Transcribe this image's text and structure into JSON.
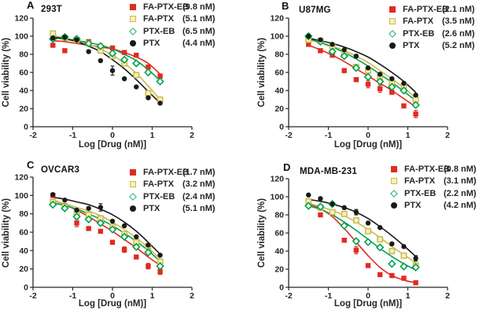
{
  "figure": {
    "background": "#ffffff"
  },
  "axes": {
    "xlabel": "Log [Drug (nM)]",
    "ylabel": "Cell viability (%)",
    "xticks": [
      -2,
      -1,
      0,
      1,
      2
    ],
    "yticks": [
      0,
      20,
      40,
      60,
      80,
      100,
      120
    ],
    "xlim": [
      -2,
      2
    ],
    "ylim": [
      0,
      120
    ],
    "grid": false,
    "axis_color": "#262626"
  },
  "chart_data": [
    {
      "type": "scatter",
      "panel_label": "A",
      "title": "293T",
      "x": [
        -1.5,
        -1.2,
        -0.9,
        -0.6,
        -0.3,
        0,
        0.3,
        0.6,
        0.9,
        1.2
      ],
      "series": [
        {
          "name": "FA-PTX-EB",
          "ic50_label": "(9.8 nM)",
          "marker": "square-filled",
          "color": "#e02b20",
          "fill": "#e02b20",
          "values": [
            90,
            84,
            96,
            94,
            89,
            87,
            82,
            79,
            66,
            56
          ],
          "err": [
            0,
            0,
            0,
            0,
            0,
            0,
            0,
            0,
            0,
            0
          ],
          "fit": [
            95,
            94,
            92,
            90,
            88,
            86,
            82,
            77,
            70,
            58
          ]
        },
        {
          "name": "FA-PTX",
          "ic50_label": "(5.1 nM)",
          "marker": "square-open",
          "color": "#c9bb4d",
          "fill": "#f7f0bd",
          "values": [
            103,
            98,
            96,
            92,
            84,
            78,
            70,
            57,
            37,
            30
          ],
          "err": [
            0,
            0,
            0,
            0,
            0,
            0,
            0,
            0,
            0,
            0
          ],
          "fit": [
            101,
            98,
            95,
            91,
            86,
            79,
            70,
            59,
            45,
            30
          ]
        },
        {
          "name": "PTX-EB",
          "ic50_label": "(6.5 nM)",
          "marker": "diamond-open",
          "color": "#00a14e",
          "fill": "#ffffff",
          "values": [
            97,
            99,
            97,
            92,
            89,
            81,
            74,
            70,
            60,
            50
          ],
          "err": [
            0,
            0,
            0,
            0,
            0,
            0,
            0,
            0,
            0,
            0
          ],
          "fit": [
            98,
            97,
            95,
            93,
            90,
            86,
            80,
            73,
            63,
            51
          ]
        },
        {
          "name": "PTX",
          "ic50_label": "(4.4 nM)",
          "marker": "circle-filled",
          "color": "#1a1a1a",
          "fill": "#1a1a1a",
          "values": [
            98,
            99,
            96,
            83,
            73,
            62,
            53,
            44,
            32,
            26
          ],
          "err": [
            0,
            0,
            0,
            0,
            0,
            5,
            0,
            0,
            0,
            0
          ],
          "fit": [
            99,
            97,
            94,
            89,
            83,
            74,
            64,
            52,
            39,
            26
          ]
        }
      ]
    },
    {
      "type": "scatter",
      "panel_label": "B",
      "title": "U87MG",
      "x": [
        -1.5,
        -1.2,
        -0.9,
        -0.6,
        -0.3,
        0,
        0.3,
        0.6,
        0.9,
        1.2
      ],
      "series": [
        {
          "name": "FA-PTX-EB",
          "ic50_label": "(2.1 nM)",
          "marker": "square-filled",
          "color": "#e02b20",
          "fill": "#e02b20",
          "values": [
            91,
            84,
            79,
            62,
            52,
            47,
            42,
            38,
            23,
            14
          ],
          "err": [
            0,
            0,
            0,
            0,
            0,
            4,
            4,
            0,
            0,
            4
          ],
          "fit": [
            90,
            85,
            79,
            72,
            64,
            56,
            48,
            40,
            31,
            22
          ]
        },
        {
          "name": "FA-PTX",
          "ic50_label": "(3.5 nM)",
          "marker": "square-open",
          "color": "#c9bb4d",
          "fill": "#f7f0bd",
          "values": [
            96,
            95,
            89,
            80,
            66,
            62,
            55,
            48,
            45,
            30
          ],
          "err": [
            0,
            0,
            0,
            0,
            0,
            0,
            0,
            0,
            0,
            0
          ],
          "fit": [
            96,
            93,
            89,
            84,
            78,
            71,
            62,
            53,
            43,
            32
          ]
        },
        {
          "name": "PTX-EB",
          "ic50_label": "(2.6 nM)",
          "marker": "diamond-open",
          "color": "#00a14e",
          "fill": "#ffffff",
          "values": [
            100,
            94,
            83,
            78,
            65,
            55,
            50,
            44,
            40,
            24
          ],
          "err": [
            0,
            0,
            0,
            0,
            0,
            0,
            0,
            0,
            0,
            0
          ],
          "fit": [
            97,
            93,
            88,
            82,
            75,
            67,
            58,
            49,
            39,
            29
          ]
        },
        {
          "name": "PTX",
          "ic50_label": "(5.2 nM)",
          "marker": "circle-filled",
          "color": "#1a1a1a",
          "fill": "#1a1a1a",
          "values": [
            100,
            96,
            91,
            85,
            78,
            65,
            58,
            53,
            48,
            35
          ],
          "err": [
            0,
            0,
            0,
            0,
            0,
            0,
            0,
            0,
            0,
            0
          ],
          "fit": [
            98,
            95,
            92,
            88,
            83,
            77,
            69,
            60,
            50,
            38
          ]
        }
      ]
    },
    {
      "type": "scatter",
      "panel_label": "C",
      "title": "OVCAR3",
      "x": [
        -1.5,
        -1.2,
        -0.9,
        -0.6,
        -0.3,
        0,
        0.3,
        0.6,
        0.9,
        1.2
      ],
      "series": [
        {
          "name": "FA-PTX-EB",
          "ic50_label": "(1.7 nM)",
          "marker": "square-filled",
          "color": "#e02b20",
          "fill": "#e02b20",
          "values": [
            100,
            89,
            70,
            64,
            61,
            49,
            41,
            33,
            23,
            17
          ],
          "err": [
            0,
            0,
            4,
            0,
            0,
            0,
            3,
            0,
            3,
            3
          ],
          "fit": [
            95,
            90,
            84,
            77,
            69,
            61,
            52,
            43,
            33,
            24
          ]
        },
        {
          "name": "FA-PTX",
          "ic50_label": "(3.2 nM)",
          "marker": "square-open",
          "color": "#c9bb4d",
          "fill": "#f7f0bd",
          "values": [
            93,
            88,
            80,
            79,
            75,
            66,
            58,
            49,
            45,
            28
          ],
          "err": [
            3,
            0,
            0,
            0,
            0,
            0,
            0,
            3,
            0,
            0
          ],
          "fit": [
            94,
            91,
            87,
            83,
            78,
            71,
            63,
            54,
            43,
            31
          ]
        },
        {
          "name": "PTX-EB",
          "ic50_label": "(2.4 nM)",
          "marker": "diamond-open",
          "color": "#00a14e",
          "fill": "#ffffff",
          "values": [
            90,
            86,
            77,
            74,
            70,
            63,
            55,
            44,
            38,
            23
          ],
          "err": [
            0,
            0,
            0,
            0,
            0,
            0,
            0,
            0,
            0,
            0
          ],
          "fit": [
            92,
            89,
            85,
            80,
            74,
            67,
            59,
            50,
            40,
            28
          ]
        },
        {
          "name": "PTX",
          "ic50_label": "(5.1 nM)",
          "marker": "circle-filled",
          "color": "#1a1a1a",
          "fill": "#1a1a1a",
          "values": [
            101,
            95,
            84,
            86,
            87,
            72,
            67,
            55,
            46,
            35
          ],
          "err": [
            0,
            0,
            0,
            0,
            4,
            0,
            0,
            0,
            0,
            0
          ],
          "fit": [
            98,
            96,
            93,
            90,
            85,
            79,
            71,
            61,
            49,
            36
          ]
        }
      ]
    },
    {
      "type": "scatter",
      "panel_label": "D",
      "title": "MDA-MB-231",
      "x": [
        -1.5,
        -1.2,
        -0.9,
        -0.6,
        -0.3,
        0,
        0.3,
        0.6,
        0.9,
        1.2
      ],
      "series": [
        {
          "name": "FA-PTX-EB",
          "ic50_label": "(0.8 nM)",
          "marker": "square-filled",
          "color": "#e02b20",
          "fill": "#e02b20",
          "values": [
            93,
            80,
            82,
            52,
            41,
            24,
            14,
            13,
            10,
            5
          ],
          "err": [
            0,
            0,
            0,
            0,
            4,
            0,
            0,
            0,
            0,
            2
          ],
          "fit": [
            92,
            87,
            78,
            65,
            50,
            35,
            22,
            13,
            8,
            5
          ]
        },
        {
          "name": "FA-PTX",
          "ic50_label": "(3.1 nM)",
          "marker": "square-open",
          "color": "#c9bb4d",
          "fill": "#f7f0bd",
          "values": [
            95,
            88,
            83,
            81,
            74,
            62,
            53,
            40,
            35,
            24
          ],
          "err": [
            0,
            0,
            0,
            0,
            0,
            0,
            0,
            0,
            0,
            2
          ],
          "fit": [
            93,
            89,
            85,
            79,
            72,
            64,
            55,
            45,
            36,
            27
          ]
        },
        {
          "name": "PTX-EB",
          "ic50_label": "(2.2 nM)",
          "marker": "diamond-open",
          "color": "#00a14e",
          "fill": "#ffffff",
          "values": [
            90,
            89,
            92,
            68,
            51,
            50,
            44,
            26,
            23,
            22
          ],
          "err": [
            0,
            0,
            0,
            0,
            0,
            0,
            0,
            0,
            0,
            0
          ],
          "fit": [
            90,
            86,
            80,
            72,
            63,
            53,
            43,
            34,
            26,
            19
          ]
        },
        {
          "name": "PTX",
          "ic50_label": "(4.2 nM)",
          "marker": "circle-filled",
          "color": "#1a1a1a",
          "fill": "#1a1a1a",
          "values": [
            102,
            98,
            92,
            88,
            83,
            71,
            66,
            48,
            45,
            32
          ],
          "err": [
            0,
            0,
            0,
            0,
            3,
            0,
            0,
            0,
            0,
            3
          ],
          "fit": [
            97,
            95,
            92,
            88,
            83,
            76,
            67,
            57,
            46,
            34
          ]
        }
      ]
    }
  ]
}
